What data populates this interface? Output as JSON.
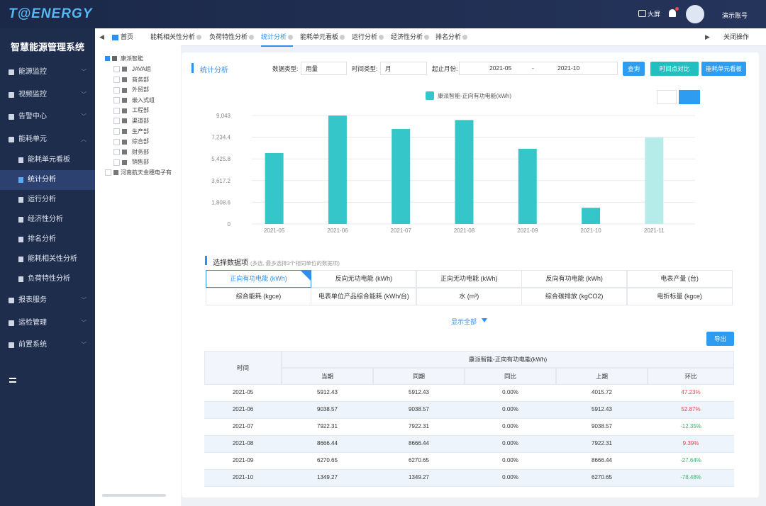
{
  "header": {
    "logo": "T@ENERGY",
    "big_screen": "大屏",
    "account": "演示账号"
  },
  "sidebar": {
    "title": "智慧能源管理系统",
    "menu": [
      {
        "label": "能源监控"
      },
      {
        "label": "视频监控"
      },
      {
        "label": "告警中心"
      },
      {
        "label": "能耗单元",
        "children": [
          "能耗单元看板",
          "统计分析",
          "运行分析",
          "经济性分析",
          "排名分析",
          "能耗相关性分析",
          "负荷特性分析"
        ]
      },
      {
        "label": "报表服务"
      },
      {
        "label": "运检管理"
      },
      {
        "label": "前置系统"
      }
    ]
  },
  "tabs": {
    "items": [
      "首页",
      "能耗相关性分析",
      "负荷特性分析",
      "统计分析",
      "能耗单元看板",
      "运行分析",
      "经济性分析",
      "排名分析"
    ],
    "close_ops": "关闭操作"
  },
  "tree": {
    "root": "康派智能",
    "children": [
      "JAVA组",
      "商务部",
      "外贸部",
      "嵌入式组",
      "工程部",
      "渠道部",
      "生产部",
      "综合部",
      "财务部",
      "销售部"
    ],
    "other": "河南航天金穗电子有"
  },
  "panel": {
    "title": "统计分析",
    "data_type_label": "数据类型:",
    "data_type": "用量",
    "time_type_label": "时间类型:",
    "time_type": "月",
    "range_label": "起止月份:",
    "range_start": "2021-05",
    "range_sep": "-",
    "range_end": "2021-10",
    "buttons": [
      "查询",
      "时间点对比",
      "能耗单元看板"
    ]
  },
  "chart_data": {
    "type": "bar",
    "categories": [
      "2021-05",
      "2021-06",
      "2021-07",
      "2021-08",
      "2021-09",
      "2021-10",
      "2021-11"
    ],
    "series": [
      {
        "name": "康派智能-正向有功电能(kWh)",
        "color": "#35c6c9",
        "values": [
          5912.43,
          9038.57,
          7922.31,
          8666.44,
          6270.65,
          1349.27,
          7200
        ]
      }
    ],
    "bar_colors": [
      "#35c6c9",
      "#35c6c9",
      "#35c6c9",
      "#35c6c9",
      "#35c6c9",
      "#35c6c9",
      "#b5ecea"
    ],
    "ylim": [
      0,
      9043
    ],
    "yticks": [
      0,
      {
        "value": 1808.6,
        "label": "1,808.6"
      },
      {
        "value": 3617.2,
        "label": "3,617.2"
      },
      {
        "value": 5425.8,
        "label": "5,425.8"
      },
      {
        "value": 7234.4,
        "label": "7,234.4"
      },
      {
        "value": 9043,
        "label": "9,043"
      }
    ],
    "grid": true,
    "legend": "top"
  },
  "data_items": {
    "title": "选择数据项",
    "hint": "(多选, 最多选择3个相同单位的数据项)",
    "items": [
      "正向有功电能 (kWh)",
      "反向无功电能 (kWh)",
      "正向无功电能 (kWh)",
      "反向有功电能 (kWh)",
      "电表产量 (台)",
      "综合能耗 (kgce)",
      "电表单位产品综合能耗 (kWh/台)",
      "水 (m³)",
      "综合碳排放 (kgCO2)",
      "电折标量 (kgce)"
    ],
    "show_all": "显示全部",
    "export": "导出"
  },
  "table": {
    "group_header": "康派智能-正向有功电能(kWh)",
    "columns": [
      "时间",
      "当期",
      "同期",
      "同比",
      "上期",
      "环比"
    ],
    "rows": [
      [
        "2021-05",
        "5912.43",
        "5912.43",
        "0.00%",
        "4015.72",
        "47.23%"
      ],
      [
        "2021-06",
        "9038.57",
        "9038.57",
        "0.00%",
        "5912.43",
        "52.87%"
      ],
      [
        "2021-07",
        "7922.31",
        "7922.31",
        "0.00%",
        "9038.57",
        "-12.35%"
      ],
      [
        "2021-08",
        "8666.44",
        "8666.44",
        "0.00%",
        "7922.31",
        "9.39%"
      ],
      [
        "2021-09",
        "6270.65",
        "6270.65",
        "0.00%",
        "8666.44",
        "-27.64%"
      ],
      [
        "2021-10",
        "1349.27",
        "1349.27",
        "0.00%",
        "6270.65",
        "-78.48%"
      ]
    ]
  }
}
